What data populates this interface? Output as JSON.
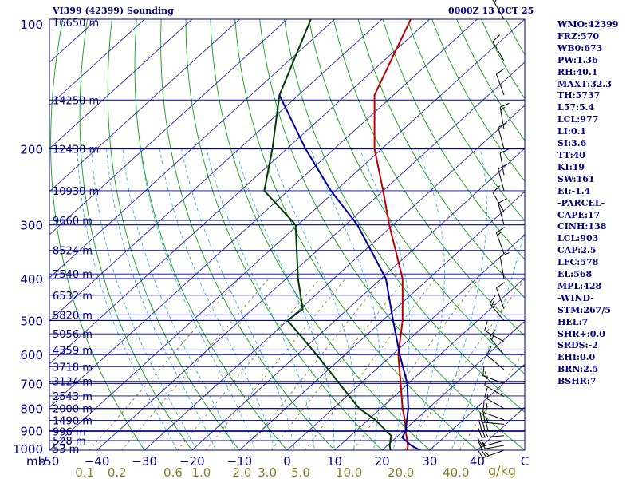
{
  "header": {
    "station": "VI399 (42399) Sounding",
    "time": "0000Z 13 OCT 25"
  },
  "indices": [
    "WMO:42399",
    "FRZ:570",
    "WB0:673",
    "PW:1.36",
    "RH:40.1",
    "MAXT:32.3",
    "TH:5737",
    "L57:5.4",
    "LCL:977",
    "LI:0.1",
    "SI:3.6",
    "TT:40",
    "KI:19",
    "SW:161",
    "EI:-1.4",
    "-PARCEL-",
    "CAPE:17",
    "CINH:138",
    "LCL:903",
    "CAP:2.5",
    "LFC:578",
    "EL:568",
    "MPL:428",
    "-WIND-",
    "STM:267/5",
    "HEL:7",
    "SHR+:0.0",
    "SRDS:-2",
    "EHI:0.0",
    "BRN:2.5",
    "BSHR:7"
  ],
  "units_label": "g/kg",
  "colors": {
    "frame": "#000080",
    "isobar": "#0000a0",
    "isotherm": "#2828a0",
    "dry_adiabat": "#10a010",
    "moist_adiabat": "#30b0e0",
    "mixing_ratio": "#8a7a2a",
    "temperature": "#c00000",
    "dewpoint": "#003a00",
    "parcel": "#0000a0",
    "wind": "#000000"
  },
  "chart_data": {
    "type": "line",
    "title": "VI399 (42399) Sounding",
    "y_scale": "log-pressure",
    "ylim": [
      1000,
      100
    ],
    "xlim": [
      -50,
      50
    ],
    "pressure_ticks": [
      {
        "p": 1000,
        "label": "1000"
      },
      {
        "p": 900,
        "label": "900"
      },
      {
        "p": 800,
        "label": "800"
      },
      {
        "p": 700,
        "label": "700"
      },
      {
        "p": 600,
        "label": "600"
      },
      {
        "p": 500,
        "label": "500"
      },
      {
        "p": 400,
        "label": "400"
      },
      {
        "p": 300,
        "label": "300"
      },
      {
        "p": 200,
        "label": "200"
      },
      {
        "p": 100,
        "label": "100"
      }
    ],
    "y_unit_label": "mb",
    "temp_ticks": [
      {
        "t": -50,
        "label": "-50"
      },
      {
        "t": -40,
        "label": "−40"
      },
      {
        "t": -30,
        "label": "−30"
      },
      {
        "t": -20,
        "label": "−20"
      },
      {
        "t": -10,
        "label": "−10"
      },
      {
        "t": 0,
        "label": "0"
      },
      {
        "t": 10,
        "label": "10"
      },
      {
        "t": 20,
        "label": "20"
      },
      {
        "t": 30,
        "label": "30"
      },
      {
        "t": 40,
        "label": "40"
      },
      {
        "t": 50,
        "label": "C"
      }
    ],
    "mixing_ratio_labels": [
      {
        "w": 0.1,
        "label": "0.1"
      },
      {
        "w": 0.2,
        "label": "0.2"
      },
      {
        "w": 0.6,
        "label": "0.6"
      },
      {
        "w": 1.0,
        "label": "1.0"
      },
      {
        "w": 2.0,
        "label": "2.0"
      },
      {
        "w": 3.0,
        "label": "3.0"
      },
      {
        "w": 5.0,
        "label": "5.0"
      },
      {
        "w": 10.0,
        "label": "10.0"
      },
      {
        "w": 20.0,
        "label": "20.0"
      },
      {
        "w": 40.0,
        "label": "40.0"
      }
    ],
    "height_levels": [
      {
        "p": 1010,
        "label": "53 m"
      },
      {
        "p": 950,
        "label": "528 m"
      },
      {
        "p": 905,
        "label": "996 m"
      },
      {
        "p": 852,
        "label": "1490 m"
      },
      {
        "p": 800,
        "label": "2000 m"
      },
      {
        "p": 748,
        "label": "2543 m"
      },
      {
        "p": 692,
        "label": "3124 m"
      },
      {
        "p": 640,
        "label": "3718 m"
      },
      {
        "p": 585,
        "label": "4359 m"
      },
      {
        "p": 537,
        "label": "5056 m"
      },
      {
        "p": 485,
        "label": "5820 m"
      },
      {
        "p": 437,
        "label": "6532 m"
      },
      {
        "p": 390,
        "label": "7540 m"
      },
      {
        "p": 344,
        "label": "8524 m"
      },
      {
        "p": 293,
        "label": "9660 m"
      },
      {
        "p": 250,
        "label": "10930 m"
      },
      {
        "p": 200,
        "label": "12430 m"
      },
      {
        "p": 154,
        "label": "14250 m"
      },
      {
        "p": 100,
        "label": "16650 m"
      }
    ],
    "series": [
      {
        "name": "Temperature",
        "points": [
          [
            1005,
            25.5
          ],
          [
            975,
            24.3
          ],
          [
            925,
            21.7
          ],
          [
            850,
            17.7
          ],
          [
            800,
            14.6
          ],
          [
            700,
            8.4
          ],
          [
            600,
            1.2
          ],
          [
            500,
            -5.8
          ],
          [
            400,
            -15.5
          ],
          [
            300,
            -30.8
          ],
          [
            250,
            -40.0
          ],
          [
            200,
            -51.5
          ],
          [
            150,
            -64.0
          ],
          [
            100,
            -74.0
          ]
        ]
      },
      {
        "name": "Dewpoint",
        "points": [
          [
            1005,
            22.0
          ],
          [
            975,
            20.5
          ],
          [
            925,
            18.5
          ],
          [
            850,
            11.5
          ],
          [
            800,
            5.5
          ],
          [
            700,
            -4.5
          ],
          [
            600,
            -16.0
          ],
          [
            500,
            -30.0
          ],
          [
            470,
            -29.5
          ],
          [
            400,
            -37.5
          ],
          [
            300,
            -50.5
          ],
          [
            250,
            -65.0
          ],
          [
            200,
            -73.0
          ],
          [
            150,
            -84.0
          ],
          [
            100,
            -95.0
          ]
        ]
      },
      {
        "name": "Parcel",
        "points": [
          [
            1000,
            28.0
          ],
          [
            975,
            25.0
          ],
          [
            935,
            21.3
          ],
          [
            903,
            20.5
          ],
          [
            800,
            15.8
          ],
          [
            700,
            9.8
          ],
          [
            600,
            1.5
          ],
          [
            500,
            -7.8
          ],
          [
            400,
            -19.0
          ],
          [
            300,
            -37.5
          ],
          [
            250,
            -51.0
          ],
          [
            200,
            -66.0
          ],
          [
            150,
            -84.0
          ]
        ]
      }
    ],
    "wind_barbs": [
      {
        "p": 1000,
        "dir": 250,
        "spd": 25
      },
      {
        "p": 975,
        "dir": 260,
        "spd": 20
      },
      {
        "p": 950,
        "dir": 255,
        "spd": 15
      },
      {
        "p": 925,
        "dir": 265,
        "spd": 25
      },
      {
        "p": 900,
        "dir": 270,
        "spd": 30
      },
      {
        "p": 870,
        "dir": 275,
        "spd": 25
      },
      {
        "p": 850,
        "dir": 290,
        "spd": 20
      },
      {
        "p": 800,
        "dir": 300,
        "spd": 15
      },
      {
        "p": 750,
        "dir": 300,
        "spd": 10
      },
      {
        "p": 700,
        "dir": 290,
        "spd": 15
      },
      {
        "p": 650,
        "dir": 310,
        "spd": 10
      },
      {
        "p": 600,
        "dir": 320,
        "spd": 15
      },
      {
        "p": 560,
        "dir": 300,
        "spd": 10
      },
      {
        "p": 500,
        "dir": 320,
        "spd": 15
      },
      {
        "p": 470,
        "dir": 340,
        "spd": 10
      },
      {
        "p": 400,
        "dir": 350,
        "spd": 10
      },
      {
        "p": 350,
        "dir": 340,
        "spd": 15
      },
      {
        "p": 300,
        "dir": 345,
        "spd": 10
      },
      {
        "p": 280,
        "dir": 330,
        "spd": 10
      },
      {
        "p": 250,
        "dir": 345,
        "spd": 10
      },
      {
        "p": 230,
        "dir": 350,
        "spd": 10
      },
      {
        "p": 200,
        "dir": 345,
        "spd": 10
      },
      {
        "p": 180,
        "dir": 350,
        "spd": 15
      },
      {
        "p": 150,
        "dir": 340,
        "spd": 10
      },
      {
        "p": 125,
        "dir": 330,
        "spd": 10
      },
      {
        "p": 100,
        "dir": 330,
        "spd": 15
      }
    ]
  }
}
